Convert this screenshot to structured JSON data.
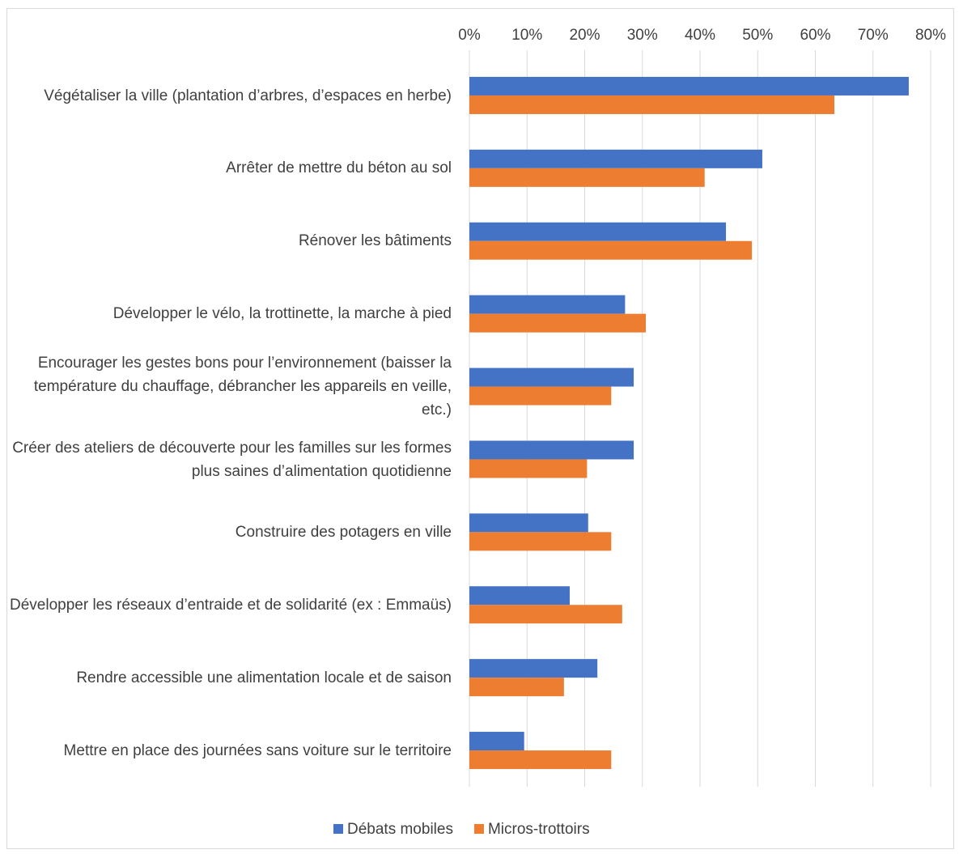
{
  "chart_data": {
    "type": "barh",
    "categories": [
      "Végétaliser la ville (plantation d’arbres, d’espaces en herbe)",
      "Arrêter de mettre du béton au sol",
      "Rénover les bâtiments",
      "Développer le vélo, la trottinette, la marche à pied",
      "Encourager les gestes bons pour l’environnement (baisser la température du chauffage, débrancher les appareils en veille, etc.)",
      "Créer des ateliers de découverte pour les familles sur les formes plus saines d’alimentation quotidienne",
      "Construire des potagers en ville",
      "Développer les réseaux d’entraide et de solidarité (ex : Emmaüs)",
      "Rendre accessible une alimentation locale et de saison",
      "Mettre en place des journées sans voiture sur le territoire"
    ],
    "series": [
      {
        "name": "Débats mobiles",
        "color": "#4472c4",
        "values": [
          76.2,
          50.8,
          44.5,
          27,
          28.5,
          28.5,
          20.6,
          17.4,
          22.2,
          9.5
        ]
      },
      {
        "name": "Micros-trottoirs",
        "color": "#ed7d31",
        "values": [
          63.3,
          40.8,
          49,
          30.6,
          24.6,
          20.4,
          24.6,
          26.5,
          16.4,
          24.6
        ]
      }
    ],
    "xlim": [
      0,
      80
    ],
    "xticks": [
      {
        "value": 0,
        "label": "0%"
      },
      {
        "value": 10,
        "label": "10%"
      },
      {
        "value": 20,
        "label": "20%"
      },
      {
        "value": 30,
        "label": "30%"
      },
      {
        "value": 40,
        "label": "40%"
      },
      {
        "value": 50,
        "label": "50%"
      },
      {
        "value": 60,
        "label": "60%"
      },
      {
        "value": 70,
        "label": "70%"
      },
      {
        "value": 80,
        "label": "80%"
      }
    ],
    "grid": true,
    "legend": "bottom"
  }
}
